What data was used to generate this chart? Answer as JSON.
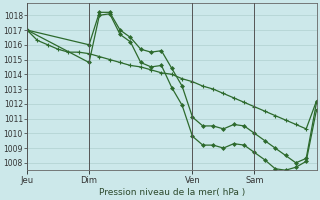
{
  "background_color": "#cce8ea",
  "grid_color": "#b0d0d0",
  "line_color": "#2d6a2d",
  "title": "Pression niveau de la mer( hPa )",
  "ylim": [
    1007.5,
    1018.8
  ],
  "yticks": [
    1008,
    1009,
    1010,
    1011,
    1012,
    1013,
    1014,
    1015,
    1016,
    1017,
    1018
  ],
  "xtick_labels": [
    "Jeu",
    "Dim",
    "Ven",
    "Sam"
  ],
  "xtick_positions": [
    0,
    3,
    8,
    11
  ],
  "xlim": [
    0,
    14
  ],
  "series1_x": [
    0.0,
    0.5,
    1.0,
    1.5,
    2.0,
    2.5,
    3.0,
    3.5,
    4.0,
    4.5,
    5.0,
    5.5,
    6.0,
    6.5,
    7.0,
    7.5,
    8.0,
    8.5,
    9.0,
    9.5,
    10.0,
    10.5,
    11.0,
    11.5,
    12.0,
    12.5,
    13.0,
    13.5,
    14.0
  ],
  "series1_y": [
    1017.0,
    1016.3,
    1016.0,
    1015.7,
    1015.5,
    1015.5,
    1015.4,
    1015.2,
    1015.0,
    1014.8,
    1014.6,
    1014.5,
    1014.3,
    1014.1,
    1014.0,
    1013.7,
    1013.5,
    1013.2,
    1013.0,
    1012.7,
    1012.4,
    1012.1,
    1011.8,
    1011.5,
    1011.2,
    1010.9,
    1010.6,
    1010.3,
    1012.2
  ],
  "series2_x": [
    0,
    3,
    3.5,
    4.0,
    4.5,
    5.0,
    5.5,
    6.0,
    6.5,
    7.0,
    7.5,
    8.0,
    8.5,
    9.0,
    9.5,
    10.0,
    10.5,
    11.0,
    11.5,
    12.0,
    12.5,
    13.0,
    13.5,
    14.0
  ],
  "series2_y": [
    1017.0,
    1016.0,
    1018.2,
    1018.2,
    1017.0,
    1016.5,
    1015.7,
    1015.5,
    1015.6,
    1014.4,
    1013.2,
    1011.1,
    1010.5,
    1010.5,
    1010.3,
    1010.6,
    1010.5,
    1010.0,
    1009.5,
    1009.0,
    1008.5,
    1008.0,
    1008.3,
    1012.1
  ],
  "series3_x": [
    0,
    3,
    3.5,
    4.0,
    4.5,
    5.0,
    5.5,
    6.0,
    6.5,
    7.0,
    7.5,
    8.0,
    8.5,
    9.0,
    9.5,
    10.0,
    10.5,
    11.0,
    11.5,
    12.0,
    12.5,
    13.0,
    13.5,
    14.0
  ],
  "series3_y": [
    1017.0,
    1014.8,
    1018.0,
    1018.1,
    1016.7,
    1016.2,
    1014.8,
    1014.5,
    1014.6,
    1013.1,
    1011.9,
    1009.8,
    1009.2,
    1009.2,
    1009.0,
    1009.3,
    1009.2,
    1008.7,
    1008.2,
    1007.6,
    1007.5,
    1007.7,
    1008.1,
    1011.6
  ],
  "vline_positions": [
    0,
    3,
    8,
    11
  ],
  "vline_color": "#555555"
}
